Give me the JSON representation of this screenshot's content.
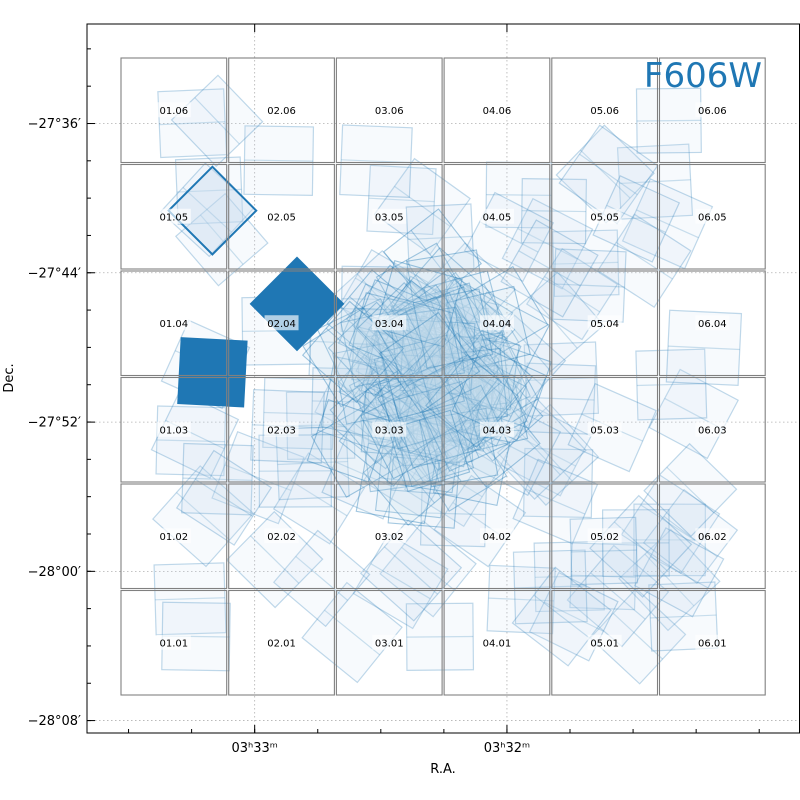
{
  "chart_data": {
    "type": "scatter",
    "title": "F606W",
    "xlabel": "R.A.",
    "ylabel": "Dec.",
    "colors": {
      "exposure": "#1f77b4",
      "exposure_fill": "#c6dbef",
      "tile_border": "#808080",
      "grid": "#b0b0b0",
      "title": "#1f77b4"
    },
    "x_axis": {
      "ticks": [
        {
          "value": 3.55,
          "label": "03ʰ33ᵐ"
        },
        {
          "value": 3.5333,
          "label": "03ʰ32ᵐ"
        }
      ],
      "lim": [
        3.5611,
        3.5139
      ]
    },
    "y_axis": {
      "ticks": [
        {
          "value": -27.6,
          "label": "−27°36′"
        },
        {
          "value": -27.7333,
          "label": "−27°44′"
        },
        {
          "value": -27.8667,
          "label": "−27°52′"
        },
        {
          "value": -28.0,
          "label": "−28°00′"
        },
        {
          "value": -28.1333,
          "label": "−28°08′"
        }
      ],
      "lim": [
        -28.1444,
        -27.5111
      ]
    },
    "grid": true,
    "tiles": [
      "01.01",
      "01.02",
      "01.03",
      "01.04",
      "01.05",
      "01.06",
      "02.01",
      "02.02",
      "02.03",
      "02.04",
      "02.05",
      "02.06",
      "03.01",
      "03.02",
      "03.03",
      "03.04",
      "03.05",
      "03.06",
      "04.01",
      "04.02",
      "04.03",
      "04.04",
      "04.05",
      "04.06",
      "05.01",
      "05.02",
      "05.03",
      "05.04",
      "05.05",
      "05.06",
      "06.01",
      "06.02",
      "06.03",
      "06.04",
      "06.05",
      "06.06"
    ],
    "highlighted_exposures": [
      {
        "ra": 3.5472,
        "dec": -27.7611,
        "rot": 45
      },
      {
        "ra": 3.5528,
        "dec": -27.8222,
        "rot": 3
      },
      {
        "ra": 3.5528,
        "dec": -27.6778,
        "rot": 45
      }
    ]
  }
}
